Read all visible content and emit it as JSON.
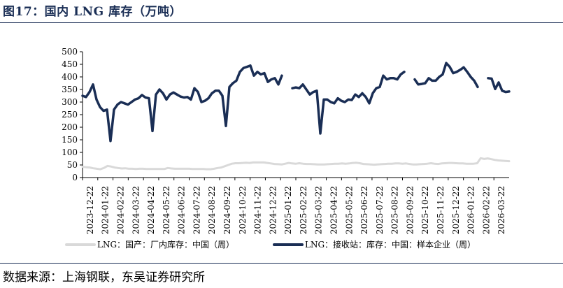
{
  "header": {
    "title": "图17：国内 LNG 库存（万吨）"
  },
  "footer": {
    "source": "数据来源：上海钢联，东吴证券研究所"
  },
  "colors": {
    "domestic": "#d9d9d9",
    "terminal": "#1a2e55",
    "rule": "#1a2e55"
  },
  "chart_data": {
    "type": "line",
    "title": "",
    "xlabel": "",
    "ylabel": "",
    "ylim": [
      0,
      500
    ],
    "y_ticks": [
      0,
      50,
      100,
      150,
      200,
      250,
      300,
      350,
      400,
      450,
      500
    ],
    "x_tick_labels": [
      "2023-12-22",
      "2024-01-22",
      "2024-02-22",
      "2024-03-22",
      "2024-04-22",
      "2024-05-22",
      "2024-06-22",
      "2024-07-22",
      "2024-08-22",
      "2024-09-22",
      "2024-10-22",
      "2024-11-22",
      "2024-12-22",
      "2025-01-22",
      "2025-02-22",
      "2025-03-22",
      "2025-04-22",
      "2025-05-22",
      "2025-06-22",
      "2025-07-22",
      "2025-08-22",
      "2025-09-22",
      "2025-10-22",
      "2025-11-22",
      "2025-12-22",
      "2026-01-22",
      "2026-02-22",
      "2026-03-22"
    ],
    "grid": false,
    "legend_position": "bottom",
    "series": [
      {
        "name": "LNG：国产：厂内库存：中国（周）",
        "values": [
          43,
          41,
          40,
          37,
          35,
          33,
          38,
          46,
          44,
          40,
          38,
          36,
          37,
          35,
          35,
          34,
          35,
          35,
          34,
          34,
          34,
          34,
          34,
          34,
          38,
          36,
          35,
          35,
          35,
          35,
          35,
          34,
          34,
          34,
          34,
          33,
          33,
          35,
          38,
          40,
          45,
          50,
          55,
          57,
          57,
          58,
          59,
          58,
          60,
          60,
          60,
          60,
          58,
          56,
          54,
          53,
          52,
          55,
          58,
          56,
          55,
          57,
          55,
          54,
          54,
          53,
          52,
          52,
          52,
          53,
          54,
          55,
          55,
          56,
          55,
          56,
          58,
          59,
          57,
          54,
          53,
          52,
          51,
          52,
          53,
          54,
          55,
          55,
          56,
          56,
          55,
          56,
          54,
          52,
          52,
          53,
          54,
          55,
          57,
          55,
          54,
          56,
          57,
          58,
          58,
          57,
          56,
          56,
          55,
          55,
          55,
          57,
          77,
          74,
          76,
          73,
          70,
          68,
          67,
          66,
          65
        ]
      },
      {
        "name": "LNG：接收站：库存：中国：样本企业（周）",
        "values": [
          325,
          320,
          340,
          370,
          310,
          280,
          265,
          270,
          145,
          270,
          290,
          300,
          295,
          290,
          300,
          310,
          315,
          328,
          318,
          315,
          185,
          330,
          350,
          335,
          310,
          330,
          338,
          330,
          322,
          318,
          320,
          310,
          355,
          340,
          300,
          305,
          315,
          335,
          345,
          345,
          325,
          205,
          360,
          375,
          385,
          420,
          435,
          440,
          445,
          405,
          420,
          410,
          415,
          380,
          390,
          395,
          370,
          405,
          null,
          null,
          355,
          358,
          355,
          370,
          350,
          330,
          340,
          345,
          175,
          310,
          310,
          300,
          295,
          315,
          305,
          300,
          310,
          308,
          330,
          320,
          335,
          320,
          295,
          335,
          355,
          360,
          405,
          390,
          395,
          395,
          390,
          410,
          420,
          null,
          null,
          390,
          370,
          372,
          375,
          395,
          385,
          385,
          400,
          410,
          455,
          440,
          415,
          420,
          428,
          438,
          420,
          400,
          385,
          360,
          null,
          null,
          395,
          393,
          352,
          378,
          345,
          340,
          342
        ]
      }
    ]
  }
}
